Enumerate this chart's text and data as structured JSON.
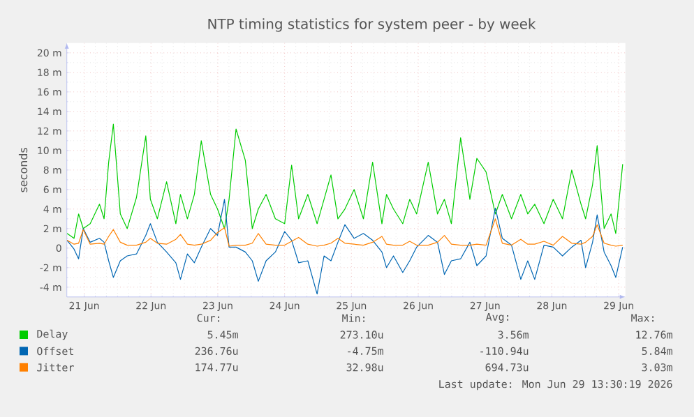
{
  "chart_data": {
    "type": "line",
    "title": "NTP timing statistics for system peer - by week",
    "ylabel": "seconds",
    "x": [
      "2026-06-20T17:51",
      "2026-06-20T20:21",
      "2026-06-20T22:00",
      "2026-06-20T23:40",
      "2026-06-21T02:10",
      "2026-06-21T05:30",
      "2026-06-21T07:09",
      "2026-06-21T08:48",
      "2026-06-21T10:29",
      "2026-06-21T12:59",
      "2026-06-21T15:27",
      "2026-06-21T18:48",
      "2026-06-21T22:08",
      "2026-06-21T23:47",
      "2026-06-22T02:17",
      "2026-06-22T05:36",
      "2026-06-22T08:56",
      "2026-06-22T10:35",
      "2026-06-22T13:05",
      "2026-06-22T15:35",
      "2026-06-22T18:04",
      "2026-06-22T21:24",
      "2026-06-22T23:54",
      "2026-06-23T02:24",
      "2026-06-23T04:03",
      "2026-06-23T06:33",
      "2026-06-23T09:53",
      "2026-06-23T12:23",
      "2026-06-23T14:33",
      "2026-06-23T17:21",
      "2026-06-23T20:41",
      "2026-06-24T00:01",
      "2026-06-24T02:31",
      "2026-06-24T05:01",
      "2026-06-24T08:20",
      "2026-06-24T11:40",
      "2026-06-24T14:10",
      "2026-06-24T16:39",
      "2026-06-24T19:09",
      "2026-06-24T21:39",
      "2026-06-25T00:58",
      "2026-06-25T04:18",
      "2026-06-25T07:36",
      "2026-06-25T10:57",
      "2026-06-25T12:36",
      "2026-06-25T15:06",
      "2026-06-25T18:26",
      "2026-06-25T20:56",
      "2026-06-25T23:25",
      "2026-06-26T03:35",
      "2026-06-26T06:55",
      "2026-06-26T09:24",
      "2026-06-26T11:54",
      "2026-06-26T15:13",
      "2026-06-26T18:33",
      "2026-06-26T21:03",
      "2026-06-27T00:22",
      "2026-06-27T03:42",
      "2026-06-27T06:12",
      "2026-06-27T09:30",
      "2026-06-27T12:50",
      "2026-06-27T15:20",
      "2026-06-27T17:50",
      "2026-06-27T21:10",
      "2026-06-28T00:29",
      "2026-06-28T03:49",
      "2026-06-28T07:08",
      "2026-06-28T10:28",
      "2026-06-28T12:07",
      "2026-06-28T14:37",
      "2026-06-28T16:16",
      "2026-06-28T18:46",
      "2026-06-28T21:16",
      "2026-06-28T22:57",
      "2026-06-29T01:26"
    ],
    "series": [
      {
        "name": "Delay",
        "color": "#00cc00",
        "values": [
          1.5,
          1.0,
          3.5,
          2.0,
          2.5,
          4.5,
          3.0,
          8.8,
          12.7,
          3.5,
          2.0,
          5.2,
          11.5,
          5.0,
          3.0,
          6.8,
          2.5,
          5.5,
          3.0,
          5.5,
          11.0,
          5.5,
          4.0,
          2.0,
          5.0,
          12.2,
          9.0,
          2.0,
          4.0,
          5.5,
          3.0,
          2.5,
          8.5,
          3.0,
          5.5,
          2.5,
          5.0,
          7.5,
          3.0,
          4.0,
          6.0,
          3.0,
          8.8,
          2.5,
          5.5,
          4.0,
          2.5,
          5.0,
          3.5,
          8.8,
          3.5,
          5.0,
          2.5,
          11.3,
          5.0,
          9.2,
          7.8,
          3.5,
          5.5,
          3.0,
          5.5,
          3.5,
          4.5,
          2.5,
          5.0,
          3.0,
          8.0,
          4.5,
          3.0,
          6.5,
          10.5,
          2.0,
          3.5,
          1.5,
          8.6
        ]
      },
      {
        "name": "Offset",
        "color": "#0066b3",
        "values": [
          0.8,
          -0.1,
          -1.1,
          2.0,
          0.6,
          1.0,
          0.6,
          -1.3,
          -3.0,
          -1.3,
          -0.8,
          -0.6,
          1.3,
          2.5,
          0.6,
          -0.4,
          -1.5,
          -3.2,
          -0.6,
          -1.5,
          0.1,
          2.0,
          1.3,
          5.0,
          0.1,
          0.1,
          -0.4,
          -1.3,
          -3.4,
          -1.3,
          -0.4,
          1.7,
          0.8,
          -1.5,
          -1.3,
          -4.7,
          -0.8,
          -1.3,
          0.6,
          2.4,
          1.0,
          1.5,
          0.8,
          -0.4,
          -2.0,
          -0.8,
          -2.5,
          -1.3,
          0.1,
          1.3,
          0.6,
          -2.7,
          -1.3,
          -1.1,
          0.6,
          -1.8,
          -0.8,
          4.1,
          1.0,
          0.3,
          -3.2,
          -1.3,
          -3.2,
          0.3,
          0.1,
          -0.8,
          0.1,
          0.8,
          -2.0,
          0.6,
          3.4,
          -0.4,
          -1.8,
          -3.0,
          0.1
        ]
      },
      {
        "name": "Jitter",
        "color": "#ff8000",
        "values": [
          0.8,
          0.4,
          0.5,
          1.9,
          0.4,
          0.5,
          0.4,
          1.2,
          1.9,
          0.6,
          0.3,
          0.3,
          0.6,
          1.0,
          0.5,
          0.4,
          0.9,
          1.4,
          0.4,
          0.3,
          0.4,
          0.8,
          1.6,
          2.1,
          0.2,
          0.3,
          0.3,
          0.5,
          1.5,
          0.4,
          0.3,
          0.3,
          0.7,
          1.1,
          0.4,
          0.2,
          0.3,
          0.5,
          1.0,
          0.5,
          0.4,
          0.3,
          0.6,
          1.2,
          0.4,
          0.3,
          0.3,
          0.7,
          0.3,
          0.3,
          0.6,
          1.3,
          0.4,
          0.3,
          0.3,
          0.4,
          0.3,
          3.0,
          0.5,
          0.3,
          0.9,
          0.4,
          0.4,
          0.7,
          0.3,
          1.2,
          0.5,
          0.4,
          0.6,
          1.2,
          2.4,
          0.5,
          0.3,
          0.2,
          0.3
        ]
      }
    ],
    "xlim": [
      "2026-06-20T17:46",
      "2026-06-29T02:24"
    ],
    "xticks": [
      {
        "value": "2026-06-21",
        "label": "21 Jun"
      },
      {
        "value": "2026-06-22",
        "label": "22 Jun"
      },
      {
        "value": "2026-06-23",
        "label": "23 Jun"
      },
      {
        "value": "2026-06-24",
        "label": "24 Jun"
      },
      {
        "value": "2026-06-25",
        "label": "25 Jun"
      },
      {
        "value": "2026-06-26",
        "label": "26 Jun"
      },
      {
        "value": "2026-06-27",
        "label": "27 Jun"
      },
      {
        "value": "2026-06-28",
        "label": "28 Jun"
      },
      {
        "value": "2026-06-29",
        "label": "29 Jun"
      }
    ],
    "ylim": [
      -5,
      21
    ],
    "yticks": [
      {
        "value": -4,
        "label": "-4 m"
      },
      {
        "value": -2,
        "label": "-2 m"
      },
      0,
      {
        "value": 2,
        "label": "2 m"
      },
      {
        "value": 4,
        "label": "4 m"
      },
      {
        "value": 6,
        "label": "6 m"
      },
      {
        "value": 8,
        "label": "8 m"
      },
      {
        "value": 10,
        "label": "10 m"
      },
      {
        "value": 12,
        "label": "12 m"
      },
      {
        "value": 14,
        "label": "14 m"
      },
      {
        "value": 16,
        "label": "16 m"
      },
      {
        "value": 18,
        "label": "18 m"
      },
      {
        "value": 20,
        "label": "20 m"
      }
    ],
    "grid": true,
    "legend": "bottom",
    "annotations": [
      "Cur:",
      "Min:",
      "Avg:",
      "Max:",
      "5.45m",
      "273.10u",
      "3.56m",
      "12.76m",
      "236.76u",
      "-4.75m",
      "-110.94u",
      "5.84m",
      "174.77u",
      "32.98u",
      "694.73u",
      "3.03m",
      "Last update: Mon Jun 29 13:30:19 2026"
    ]
  }
}
